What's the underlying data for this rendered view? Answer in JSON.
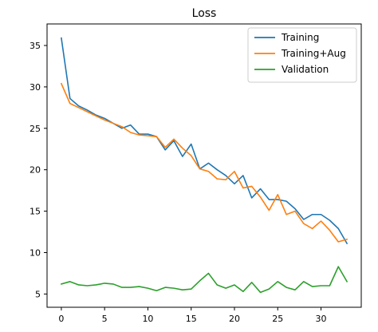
{
  "chart_data": {
    "type": "line",
    "title": "Loss",
    "xlabel": "",
    "ylabel": "",
    "xlim": [
      -1.65,
      34.65
    ],
    "ylim": [
      3.4,
      37.6
    ],
    "xticks": [
      0,
      5,
      10,
      15,
      20,
      25,
      30
    ],
    "yticks": [
      5,
      10,
      15,
      20,
      25,
      30,
      35
    ],
    "grid": false,
    "legend_position": "top-right",
    "x": [
      0,
      1,
      2,
      3,
      4,
      5,
      6,
      7,
      8,
      9,
      10,
      11,
      12,
      13,
      14,
      15,
      16,
      17,
      18,
      19,
      20,
      21,
      22,
      23,
      24,
      25,
      26,
      27,
      28,
      29,
      30,
      31,
      32,
      33
    ],
    "series": [
      {
        "name": "Training",
        "color": "#1f77b4",
        "values": [
          35.9,
          28.6,
          27.7,
          27.2,
          26.6,
          26.2,
          25.6,
          25.0,
          25.4,
          24.3,
          24.3,
          24.0,
          22.4,
          23.5,
          21.6,
          23.1,
          20.1,
          20.8,
          20.0,
          19.3,
          18.3,
          19.3,
          16.6,
          17.7,
          16.4,
          16.4,
          16.2,
          15.3,
          14.0,
          14.6,
          14.6,
          13.9,
          12.9,
          11.1
        ]
      },
      {
        "name": "Training+Aug",
        "color": "#ff7f0e",
        "values": [
          30.4,
          28.0,
          27.5,
          27.0,
          26.5,
          26.0,
          25.6,
          25.2,
          24.5,
          24.2,
          24.1,
          24.0,
          22.7,
          23.7,
          22.6,
          21.7,
          20.1,
          19.8,
          18.9,
          18.8,
          19.8,
          17.8,
          18.0,
          16.7,
          15.1,
          17.0,
          14.6,
          15.0,
          13.5,
          12.9,
          13.8,
          12.7,
          11.3,
          11.6
        ]
      },
      {
        "name": "Validation",
        "color": "#2ca02c",
        "values": [
          6.2,
          6.5,
          6.1,
          6.0,
          6.1,
          6.3,
          6.2,
          5.8,
          5.8,
          5.9,
          5.7,
          5.4,
          5.8,
          5.7,
          5.5,
          5.6,
          6.6,
          7.5,
          6.1,
          5.7,
          6.1,
          5.3,
          6.4,
          5.2,
          5.6,
          6.5,
          5.8,
          5.5,
          6.5,
          5.9,
          6.0,
          6.0,
          8.3,
          6.5
        ]
      }
    ]
  }
}
